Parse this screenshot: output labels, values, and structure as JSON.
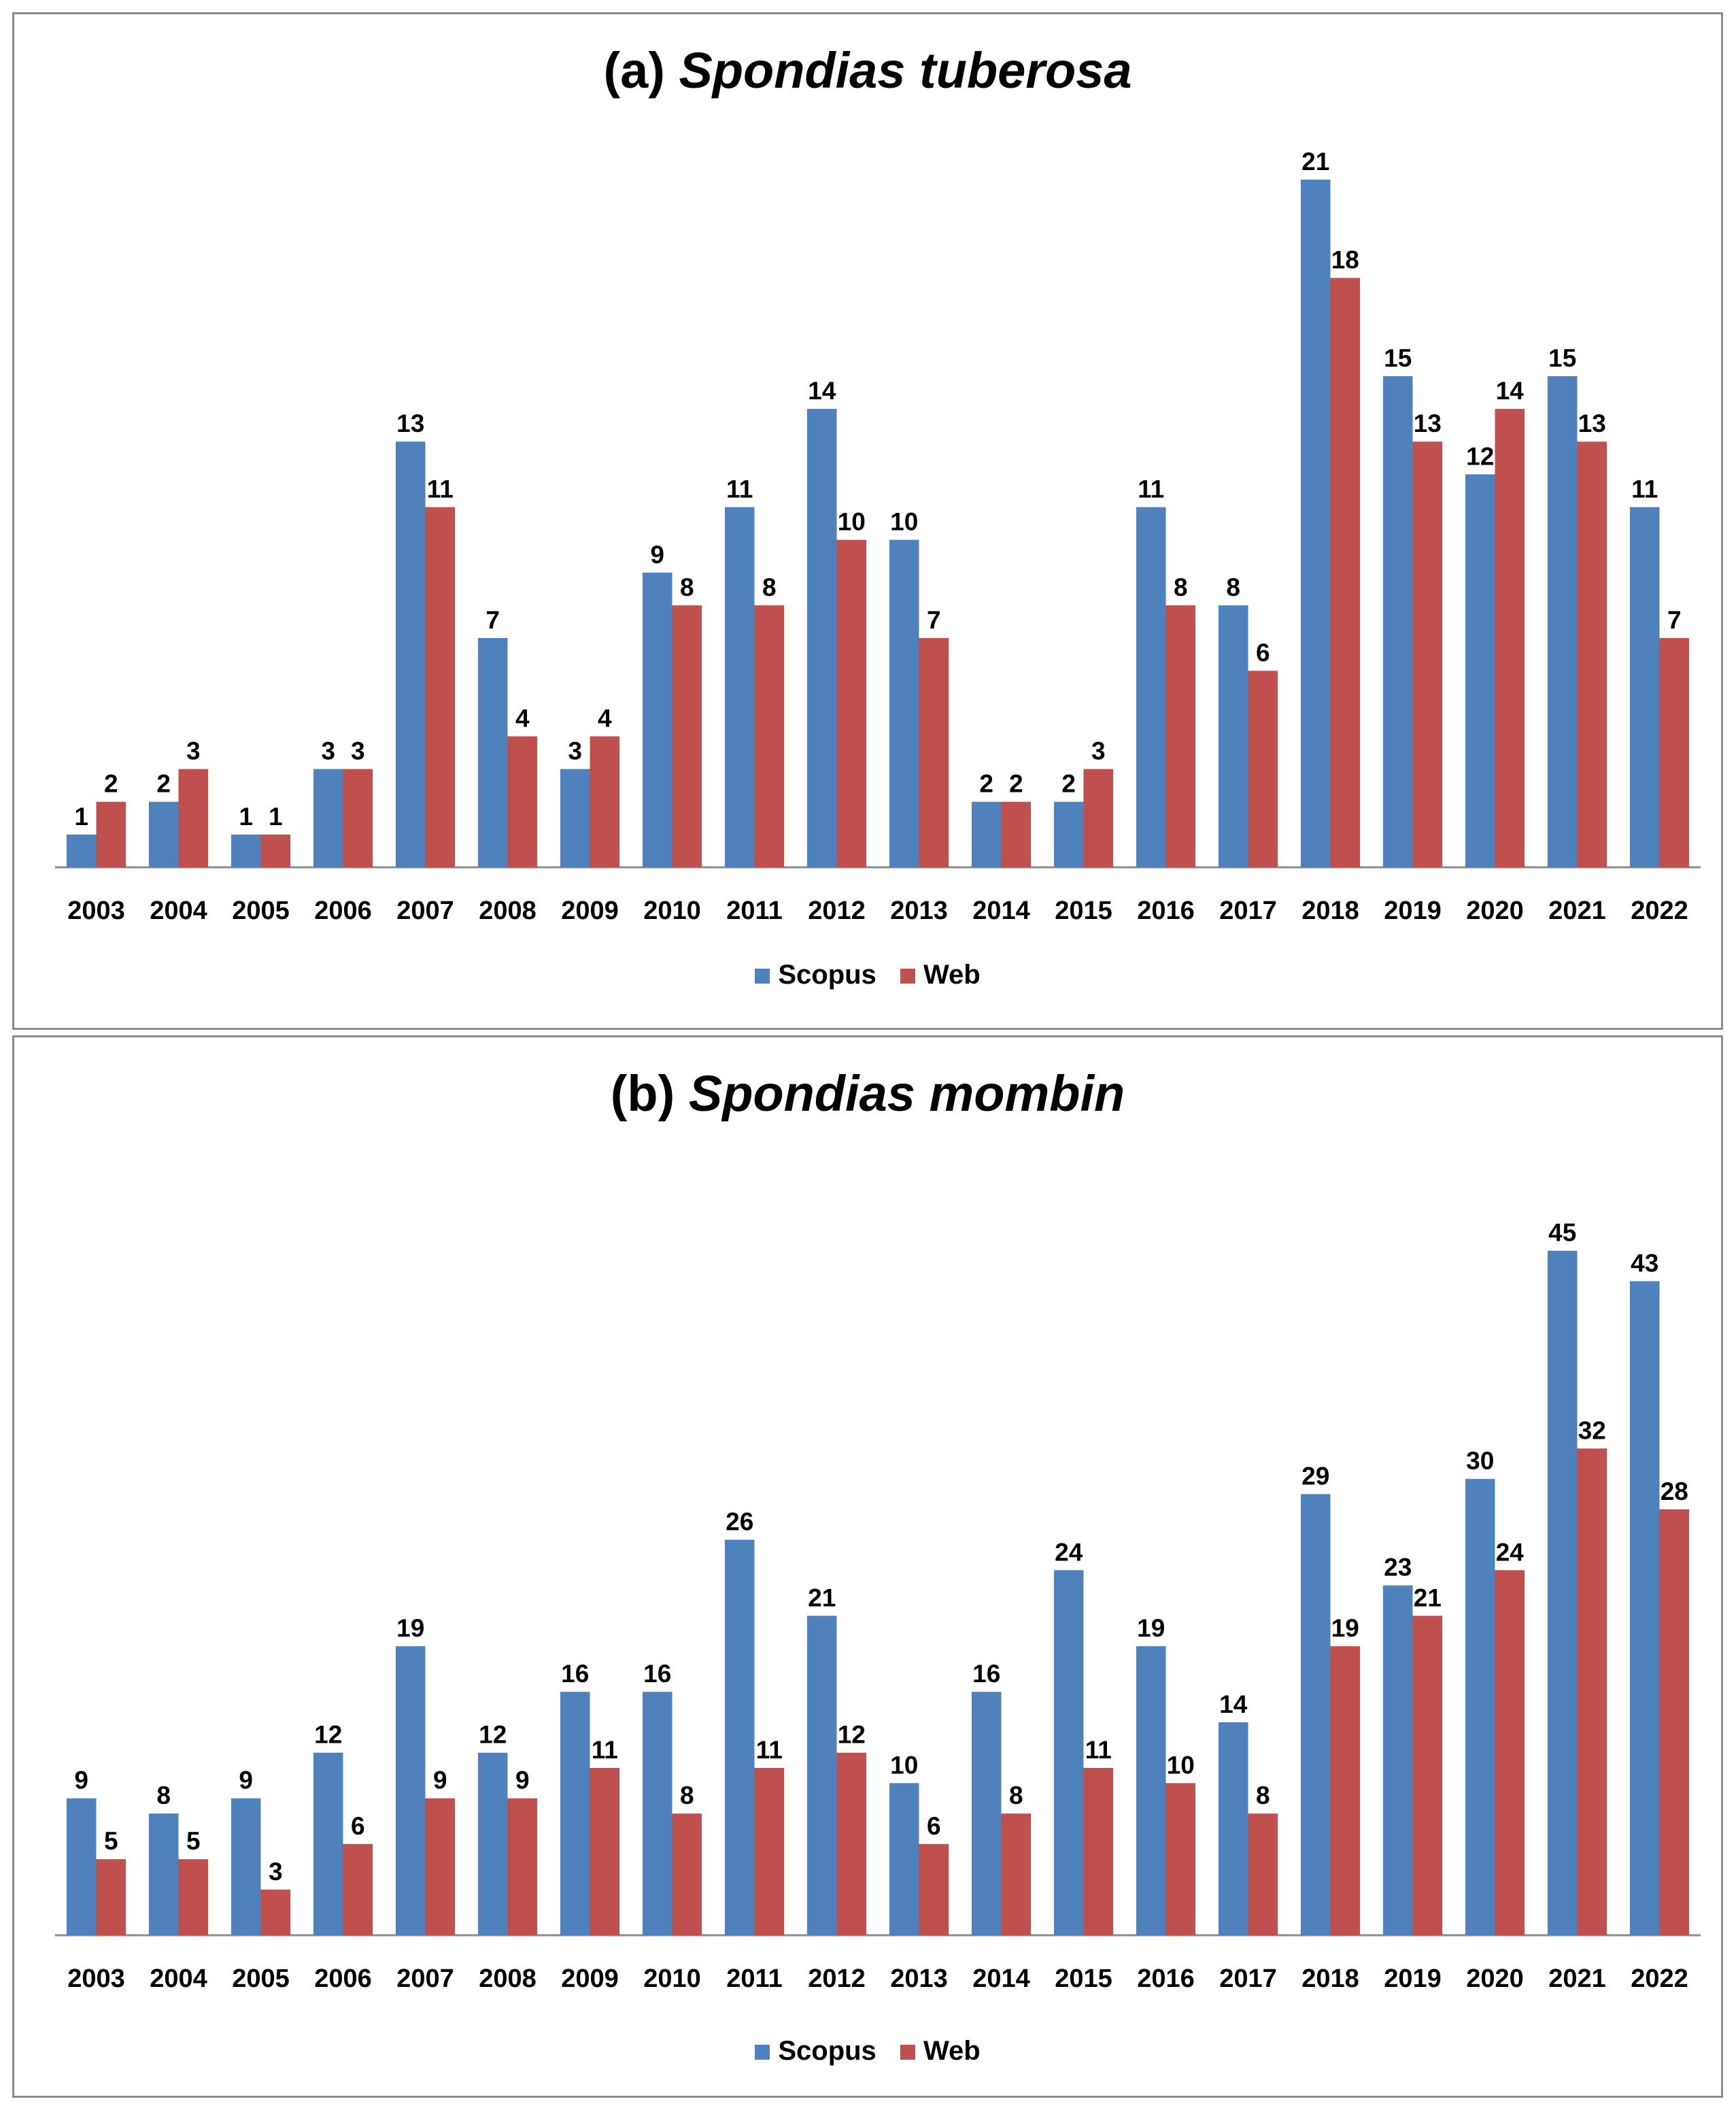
{
  "colors": {
    "scopus": "#4f81bd",
    "web": "#c0504d",
    "axis": "#8c8c8c"
  },
  "chart_data": [
    {
      "type": "bar",
      "title_prefix": "(a)",
      "title_species": "Spondias tuberosa",
      "categories": [
        "2003",
        "2004",
        "2005",
        "2006",
        "2007",
        "2008",
        "2009",
        "2010",
        "2011",
        "2012",
        "2013",
        "2014",
        "2015",
        "2016",
        "2017",
        "2018",
        "2019",
        "2020",
        "2021",
        "2022"
      ],
      "series": [
        {
          "name": "Scopus",
          "values": [
            1,
            2,
            1,
            3,
            13,
            7,
            3,
            9,
            11,
            14,
            10,
            2,
            2,
            11,
            8,
            21,
            15,
            12,
            15,
            11
          ]
        },
        {
          "name": "Web",
          "values": [
            2,
            3,
            1,
            3,
            11,
            4,
            4,
            8,
            8,
            10,
            7,
            2,
            3,
            8,
            6,
            18,
            13,
            14,
            13,
            7
          ]
        }
      ],
      "ylim": [
        0,
        22
      ],
      "legend": [
        "Scopus",
        "Web"
      ]
    },
    {
      "type": "bar",
      "title_prefix": "(b)",
      "title_species": "Spondias mombin",
      "categories": [
        "2003",
        "2004",
        "2005",
        "2006",
        "2007",
        "2008",
        "2009",
        "2010",
        "2011",
        "2012",
        "2013",
        "2014",
        "2015",
        "2016",
        "2017",
        "2018",
        "2019",
        "2020",
        "2021",
        "2022"
      ],
      "series": [
        {
          "name": "Scopus",
          "values": [
            9,
            8,
            9,
            12,
            19,
            12,
            16,
            16,
            26,
            21,
            10,
            16,
            24,
            19,
            14,
            29,
            23,
            30,
            45,
            43
          ]
        },
        {
          "name": "Web",
          "values": [
            5,
            5,
            3,
            6,
            9,
            9,
            11,
            8,
            11,
            12,
            6,
            8,
            11,
            10,
            8,
            19,
            21,
            24,
            32,
            28
          ]
        }
      ],
      "ylim": [
        0,
        47
      ],
      "legend": [
        "Scopus",
        "Web"
      ]
    }
  ]
}
